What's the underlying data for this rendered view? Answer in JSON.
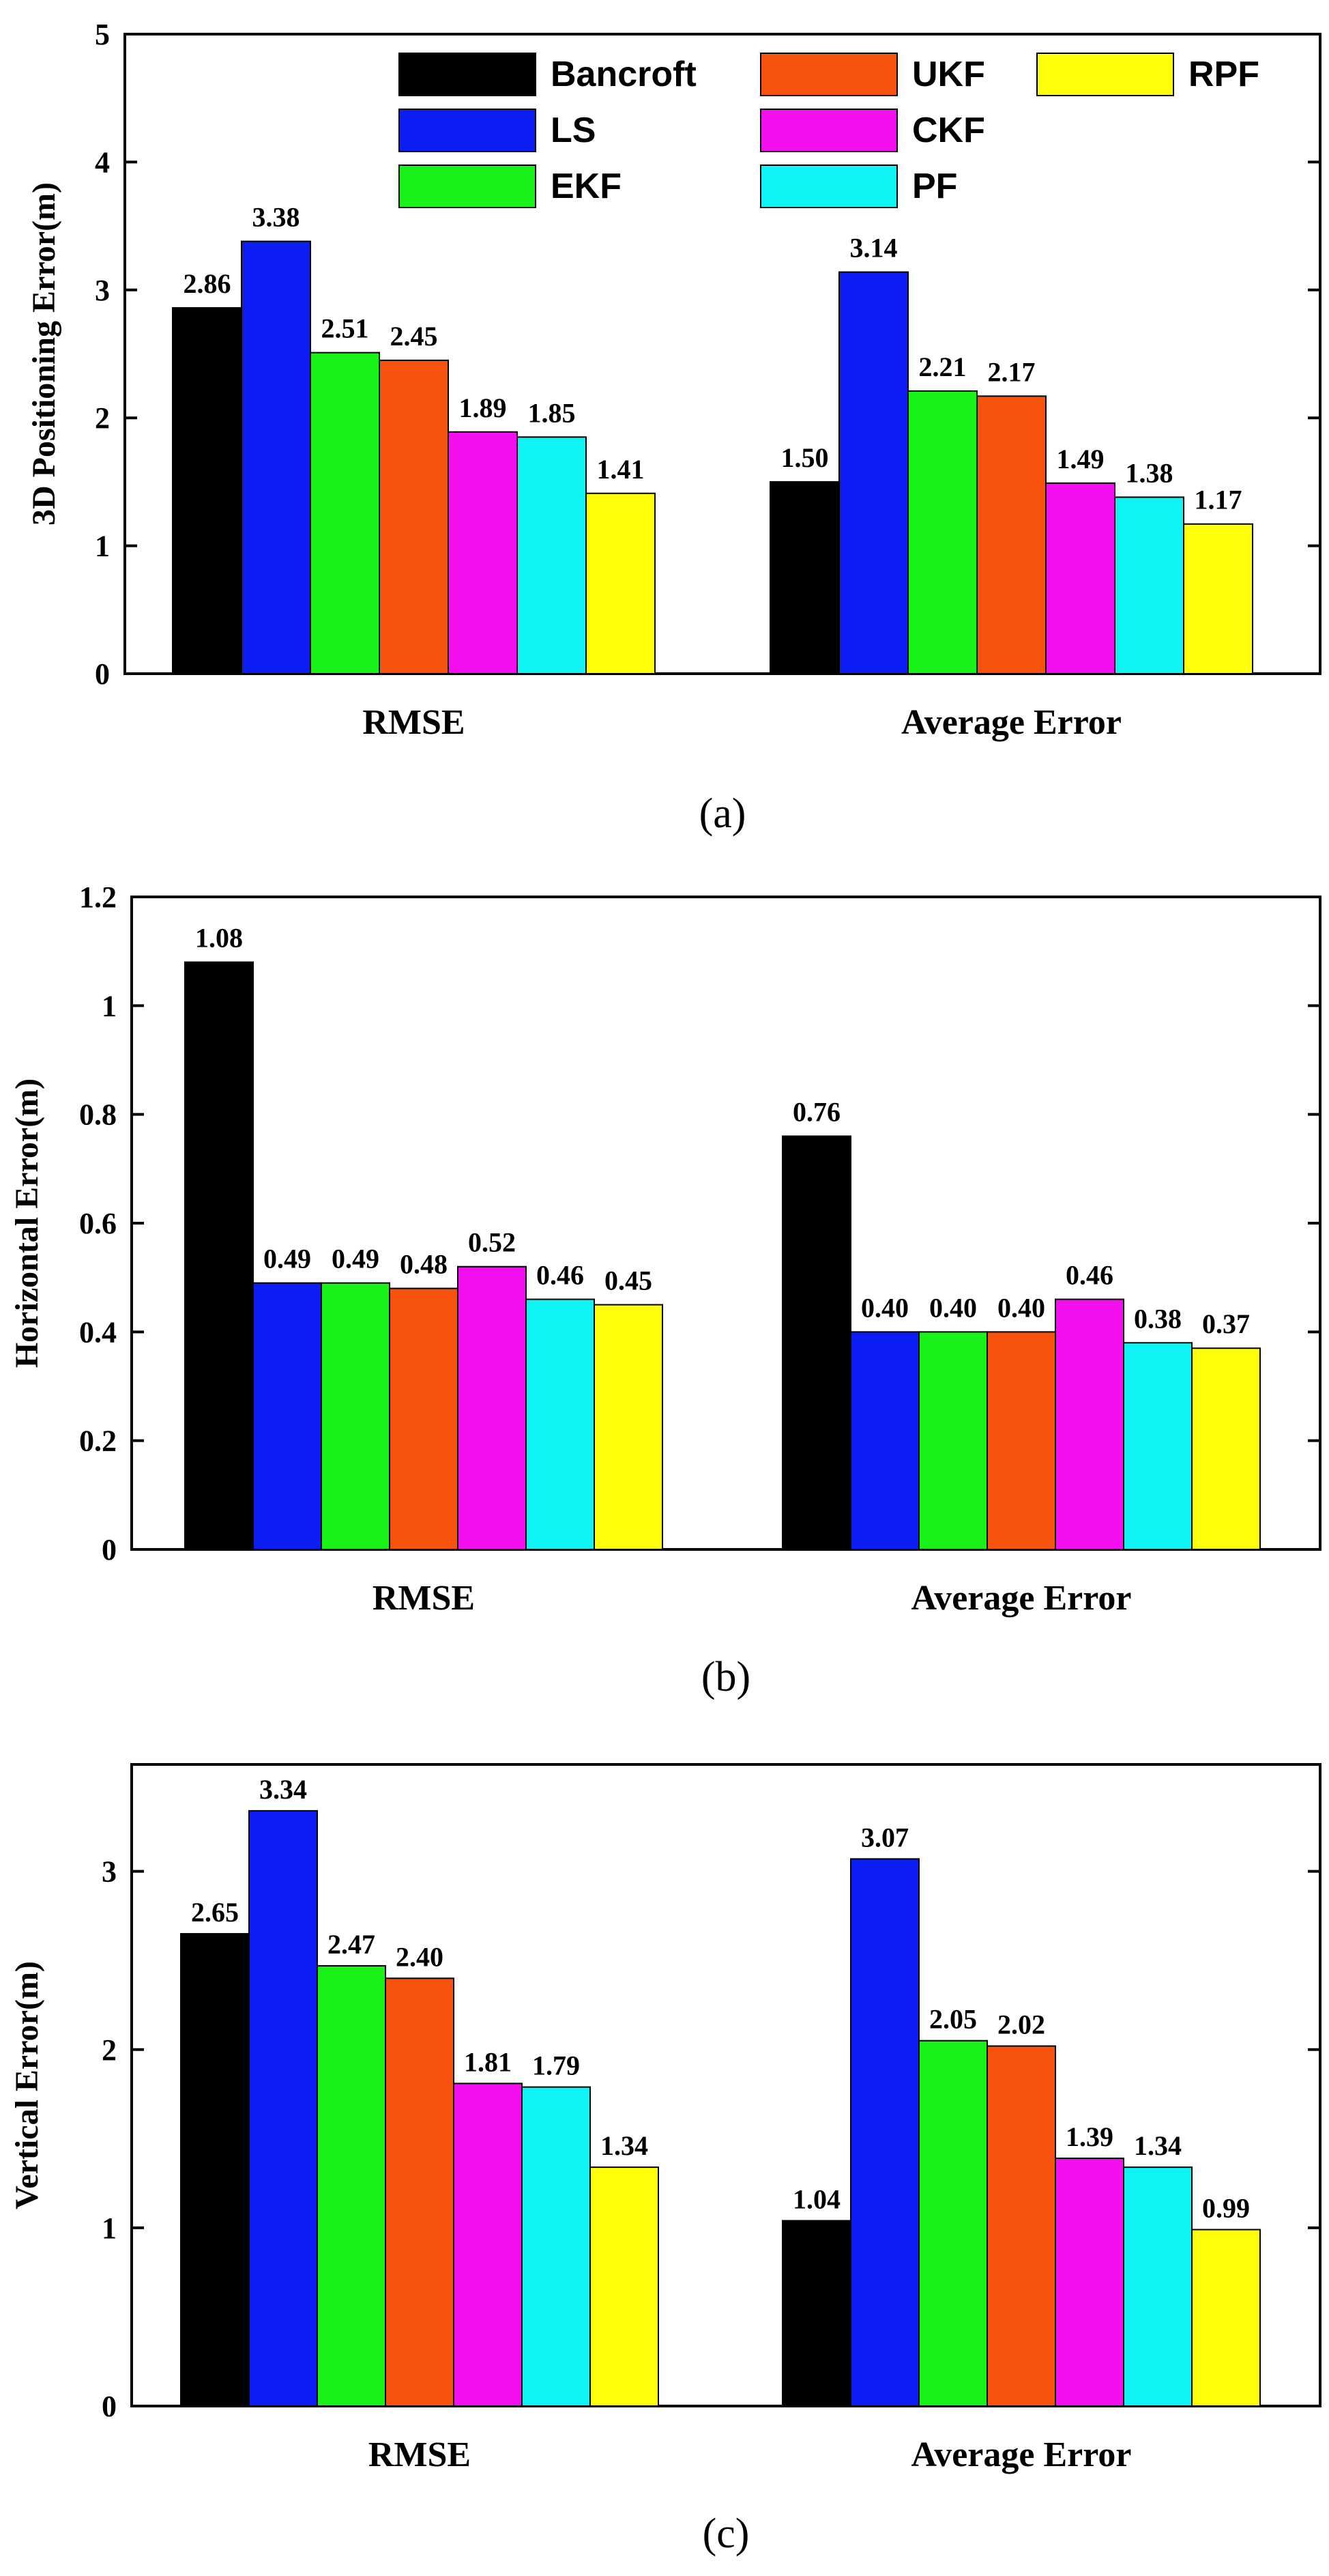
{
  "chart_data": [
    {
      "type": "bar",
      "panel": "(a)",
      "ylabel": "3D Positioning Error(m)",
      "ylim": [
        0,
        5
      ],
      "yticks": [
        "0",
        "1",
        "2",
        "3",
        "4",
        "5"
      ],
      "categories": [
        "RMSE",
        "Average Error"
      ],
      "legend": "top-right",
      "series": [
        {
          "name": "Bancroft",
          "color": "#000000",
          "values": [
            2.86,
            1.5
          ],
          "labels": [
            "2.86",
            "1.50"
          ]
        },
        {
          "name": "LS",
          "color": "#0b1df2",
          "values": [
            3.38,
            3.14
          ],
          "labels": [
            "3.38",
            "3.14"
          ]
        },
        {
          "name": "EKF",
          "color": "#18f218",
          "values": [
            2.51,
            2.21
          ],
          "labels": [
            "2.51",
            "2.21"
          ]
        },
        {
          "name": "UKF",
          "color": "#f7520e",
          "values": [
            2.45,
            2.17
          ],
          "labels": [
            "2.45",
            "2.17"
          ]
        },
        {
          "name": "CKF",
          "color": "#f40ff0",
          "values": [
            1.89,
            1.49
          ],
          "labels": [
            "1.89",
            "1.49"
          ]
        },
        {
          "name": "PF",
          "color": "#0ff3f5",
          "values": [
            1.85,
            1.38
          ],
          "labels": [
            "1.85",
            "1.38"
          ]
        },
        {
          "name": "RPF",
          "color": "#ffff0a",
          "values": [
            1.41,
            1.17
          ],
          "labels": [
            "1.41",
            "1.17"
          ]
        }
      ]
    },
    {
      "type": "bar",
      "panel": "(b)",
      "ylabel": "Horizontal Error(m)",
      "ylim": [
        0,
        1.2
      ],
      "yticks": [
        "0",
        "0.2",
        "0.4",
        "0.6",
        "0.8",
        "1",
        "1.2"
      ],
      "categories": [
        "RMSE",
        "Average Error"
      ],
      "series": [
        {
          "name": "Bancroft",
          "color": "#000000",
          "values": [
            1.08,
            0.76
          ],
          "labels": [
            "1.08",
            "0.76"
          ]
        },
        {
          "name": "LS",
          "color": "#0b1df2",
          "values": [
            0.49,
            0.4
          ],
          "labels": [
            "0.49",
            "0.40"
          ]
        },
        {
          "name": "EKF",
          "color": "#18f218",
          "values": [
            0.49,
            0.4
          ],
          "labels": [
            "0.49",
            "0.40"
          ]
        },
        {
          "name": "UKF",
          "color": "#f7520e",
          "values": [
            0.48,
            0.4
          ],
          "labels": [
            "0.48",
            "0.40"
          ]
        },
        {
          "name": "CKF",
          "color": "#f40ff0",
          "values": [
            0.52,
            0.46
          ],
          "labels": [
            "0.52",
            "0.46"
          ]
        },
        {
          "name": "PF",
          "color": "#0ff3f5",
          "values": [
            0.46,
            0.38
          ],
          "labels": [
            "0.46",
            "0.38"
          ]
        },
        {
          "name": "RPF",
          "color": "#ffff0a",
          "values": [
            0.45,
            0.37
          ],
          "labels": [
            "0.45",
            "0.37"
          ]
        }
      ]
    },
    {
      "type": "bar",
      "panel": "(c)",
      "ylabel": "Vertical Error(m)",
      "ylim": [
        0,
        3.6
      ],
      "yticks": [
        "0",
        "1",
        "2",
        "3"
      ],
      "categories": [
        "RMSE",
        "Average Error"
      ],
      "series": [
        {
          "name": "Bancroft",
          "color": "#000000",
          "values": [
            2.65,
            1.04
          ],
          "labels": [
            "2.65",
            "1.04"
          ]
        },
        {
          "name": "LS",
          "color": "#0b1df2",
          "values": [
            3.34,
            3.07
          ],
          "labels": [
            "3.34",
            "3.07"
          ]
        },
        {
          "name": "EKF",
          "color": "#18f218",
          "values": [
            2.47,
            2.05
          ],
          "labels": [
            "2.47",
            "2.05"
          ]
        },
        {
          "name": "UKF",
          "color": "#f7520e",
          "values": [
            2.4,
            2.02
          ],
          "labels": [
            "2.40",
            "2.02"
          ]
        },
        {
          "name": "CKF",
          "color": "#f40ff0",
          "values": [
            1.81,
            1.39
          ],
          "labels": [
            "1.81",
            "1.39"
          ]
        },
        {
          "name": "PF",
          "color": "#0ff3f5",
          "values": [
            1.79,
            1.34
          ],
          "labels": [
            "1.79",
            "1.34"
          ]
        },
        {
          "name": "RPF",
          "color": "#ffff0a",
          "values": [
            1.34,
            0.99
          ],
          "labels": [
            "1.34",
            "0.99"
          ]
        }
      ]
    }
  ]
}
